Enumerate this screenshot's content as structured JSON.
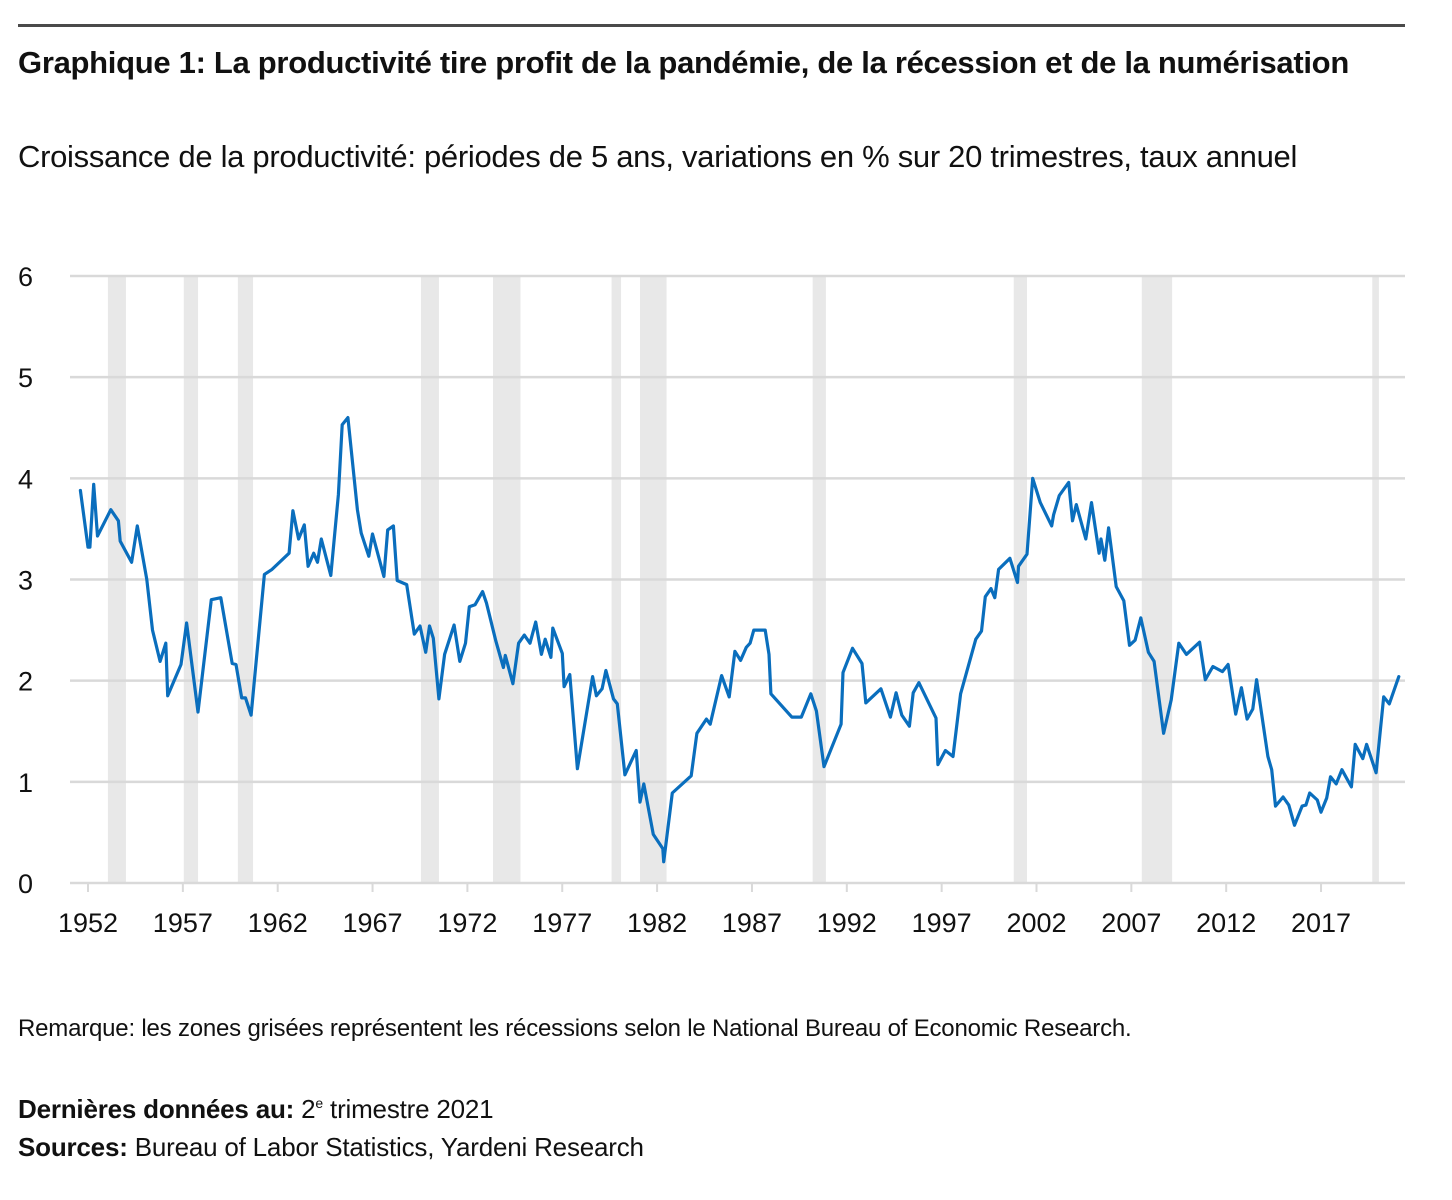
{
  "header": {
    "title": "Graphique 1: La productivité tire profit de la pandémie, de la récession et de la numérisation",
    "subtitle": "Croissance de la productivité: périodes de 5 ans, variations en % sur 20 trimestres, taux annuel"
  },
  "footer": {
    "note": "Remarque: les zones grisées représentent les récessions selon le National Bureau of Economic Research.",
    "latest_label": "Dernières données au:",
    "latest_value_num": "2",
    "latest_value_sup": "e",
    "latest_value_rest": " trimestre 2021",
    "sources_label": "Sources:",
    "sources_value": "Bureau of Labor Statistics, Yardeni Research"
  },
  "colors": {
    "line": "#0a6ebd",
    "grid": "#d9d9d9",
    "recession": "#e8e8e8",
    "axis": "#d9d9d9"
  },
  "chart_data": {
    "type": "line",
    "title": "Graphique 1: La productivité tire profit de la pandémie, de la récession et de la numérisation",
    "subtitle": "Croissance de la productivité: périodes de 5 ans, variations en % sur 20 trimestres, taux annuel",
    "xlabel": "",
    "ylabel": "",
    "xlim": [
      1951.2,
      2022.2
    ],
    "ylim": [
      0,
      6
    ],
    "grid": true,
    "legend": "none",
    "x_ticks": [
      1952,
      1957,
      1962,
      1967,
      1972,
      1977,
      1982,
      1987,
      1992,
      1997,
      2002,
      2007,
      2012,
      2017
    ],
    "x_tick_labels": [
      "1952",
      "1957",
      "1962",
      "1967",
      "1972",
      "1977",
      "1982",
      "1987",
      "1992",
      "1997",
      "2002",
      "2007",
      "2012",
      "2017"
    ],
    "y_ticks": [
      0,
      1,
      2,
      3,
      4,
      5,
      6
    ],
    "y_tick_labels": [
      "0",
      "1",
      "2",
      "3",
      "4",
      "5",
      "6"
    ],
    "recessions": [
      [
        1953.05,
        1954.0
      ],
      [
        1957.05,
        1957.8
      ],
      [
        1959.9,
        1960.7
      ],
      [
        1969.55,
        1970.5
      ],
      [
        1973.35,
        1974.8
      ],
      [
        1979.6,
        1980.1
      ],
      [
        1981.1,
        1982.5
      ],
      [
        1990.2,
        1990.9
      ],
      [
        2000.8,
        2001.5
      ],
      [
        2007.55,
        2009.15
      ],
      [
        2019.7,
        2020.05
      ]
    ],
    "series": [
      {
        "name": "Croissance de la productivité (% sur 20 trimestres, taux annuel)",
        "x": [
          1951.6,
          1952.0,
          1952.1,
          1952.3,
          1952.5,
          1953.2,
          1953.6,
          1953.7,
          1954.3,
          1954.6,
          1955.1,
          1955.4,
          1955.8,
          1956.1,
          1956.2,
          1956.9,
          1957.2,
          1957.8,
          1958.5,
          1959.0,
          1959.6,
          1959.8,
          1960.1,
          1960.3,
          1960.6,
          1961.3,
          1961.7,
          1962.6,
          1962.8,
          1963.1,
          1963.4,
          1963.6,
          1963.9,
          1964.1,
          1964.3,
          1964.8,
          1965.2,
          1965.4,
          1965.7,
          1966.2,
          1966.4,
          1966.8,
          1967.0,
          1967.6,
          1967.8,
          1968.1,
          1968.3,
          1968.8,
          1969.2,
          1969.5,
          1969.8,
          1970.0,
          1970.2,
          1970.5,
          1970.8,
          1971.3,
          1971.6,
          1971.9,
          1972.1,
          1972.4,
          1972.8,
          1973.0,
          1973.5,
          1973.9,
          1974.0,
          1974.4,
          1974.7,
          1975.0,
          1975.3,
          1975.6,
          1975.9,
          1976.1,
          1976.4,
          1976.5,
          1977.0,
          1977.1,
          1977.4,
          1977.8,
          1978.6,
          1978.8,
          1979.1,
          1979.3,
          1979.7,
          1979.9,
          1980.3,
          1980.9,
          1981.1,
          1981.3,
          1981.8,
          1982.3,
          1982.35,
          1982.8,
          1983.8,
          1984.1,
          1984.6,
          1984.8,
          1985.4,
          1985.8,
          1986.1,
          1986.4,
          1986.7,
          1986.9,
          1987.1,
          1987.7,
          1987.9,
          1988.0,
          1989.1,
          1989.6,
          1990.1,
          1990.4,
          1990.8,
          1991.7,
          1991.8,
          1992.3,
          1992.8,
          1993.0,
          1993.8,
          1994.3,
          1994.6,
          1994.9,
          1995.3,
          1995.5,
          1995.8,
          1996.7,
          1996.8,
          1997.2,
          1997.6,
          1998.0,
          1998.8,
          1999.1,
          1999.3,
          1999.6,
          1999.8,
          2000.0,
          2000.6,
          2001.0,
          2001.05,
          2001.5,
          2001.8,
          2002.2,
          2002.8,
          2002.9,
          2003.2,
          2003.7,
          2003.9,
          2004.1,
          2004.6,
          2004.9,
          2005.3,
          2005.4,
          2005.6,
          2005.8,
          2006.2,
          2006.6,
          2006.9,
          2007.2,
          2007.5,
          2007.9,
          2008.2,
          2008.7,
          2009.1,
          2009.5,
          2009.9,
          2010.6,
          2010.9,
          2011.3,
          2011.8,
          2012.1,
          2012.5,
          2012.8,
          2013.1,
          2013.4,
          2013.6,
          2014.2,
          2014.4,
          2014.6,
          2015.0,
          2015.3,
          2015.6,
          2016.0,
          2016.2,
          2016.4,
          2016.8,
          2017.0,
          2017.3,
          2017.5,
          2017.8,
          2018.1,
          2018.6,
          2018.8,
          2019.2,
          2019.4,
          2019.9,
          2020.3,
          2020.6,
          2021.1
        ],
        "values": [
          3.88,
          3.32,
          3.32,
          3.94,
          3.43,
          3.69,
          3.58,
          3.38,
          3.17,
          3.53,
          3.0,
          2.5,
          2.19,
          2.37,
          1.85,
          2.16,
          2.57,
          1.69,
          2.8,
          2.82,
          2.17,
          2.16,
          1.83,
          1.83,
          1.66,
          3.05,
          3.1,
          3.26,
          3.68,
          3.4,
          3.54,
          3.13,
          3.26,
          3.17,
          3.4,
          3.04,
          3.84,
          4.53,
          4.6,
          3.69,
          3.46,
          3.23,
          3.45,
          3.03,
          3.49,
          3.53,
          2.99,
          2.95,
          2.46,
          2.54,
          2.28,
          2.54,
          2.42,
          1.82,
          2.26,
          2.55,
          2.19,
          2.37,
          2.73,
          2.75,
          2.88,
          2.77,
          2.39,
          2.13,
          2.25,
          1.97,
          2.37,
          2.45,
          2.37,
          2.58,
          2.26,
          2.41,
          2.23,
          2.52,
          2.27,
          1.94,
          2.06,
          1.13,
          2.04,
          1.85,
          1.92,
          2.1,
          1.82,
          1.77,
          1.07,
          1.31,
          0.8,
          0.98,
          0.48,
          0.34,
          0.21,
          0.89,
          1.06,
          1.48,
          1.62,
          1.57,
          2.05,
          1.84,
          2.29,
          2.2,
          2.33,
          2.37,
          2.5,
          2.5,
          2.26,
          1.87,
          1.64,
          1.64,
          1.87,
          1.7,
          1.15,
          1.57,
          2.08,
          2.32,
          2.17,
          1.78,
          1.92,
          1.64,
          1.88,
          1.66,
          1.55,
          1.88,
          1.98,
          1.63,
          1.17,
          1.31,
          1.25,
          1.87,
          2.41,
          2.49,
          2.83,
          2.91,
          2.82,
          3.1,
          3.21,
          2.97,
          3.13,
          3.25,
          4.0,
          3.76,
          3.53,
          3.64,
          3.83,
          3.96,
          3.58,
          3.74,
          3.4,
          3.76,
          3.26,
          3.4,
          3.19,
          3.51,
          2.93,
          2.79,
          2.35,
          2.4,
          2.62,
          2.28,
          2.19,
          1.48,
          1.81,
          2.37,
          2.26,
          2.38,
          2.01,
          2.14,
          2.09,
          2.16,
          1.67,
          1.93,
          1.62,
          1.72,
          2.01,
          1.25,
          1.12,
          0.76,
          0.85,
          0.77,
          0.57,
          0.76,
          0.77,
          0.89,
          0.82,
          0.7,
          0.84,
          1.05,
          0.98,
          1.12,
          0.95,
          1.37,
          1.23,
          1.37,
          1.09,
          1.84,
          1.77,
          2.04
        ]
      }
    ]
  }
}
